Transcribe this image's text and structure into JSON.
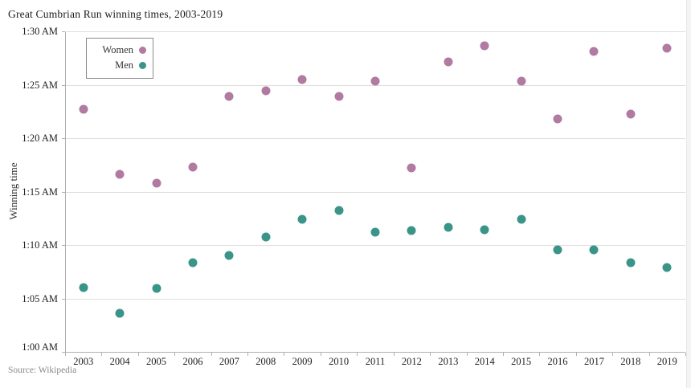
{
  "chart_data": {
    "type": "scatter",
    "title": "Great Cumbrian Run winning times, 2003-2019",
    "ylabel": "Winning time",
    "xlabel": "",
    "source": "Source: Wikipedia",
    "grid": "horizontal",
    "legend_position": "top-left",
    "x": [
      "2003",
      "2004",
      "2005",
      "2006",
      "2007",
      "2008",
      "2009",
      "2010",
      "2011",
      "2012",
      "2013",
      "2014",
      "2015",
      "2016",
      "2017",
      "2018",
      "2019"
    ],
    "y_axis": {
      "ticks_bottom_to_top": [
        "1:00 AM",
        "1:05 AM",
        "1:10 AM",
        "1:15 AM",
        "1:20 AM",
        "1:25 AM",
        "1:30 AM"
      ],
      "min_minutes_after_1am": 0,
      "max_minutes_after_1am": 30,
      "unit": "winning time shown as clock time after 1:00"
    },
    "series": [
      {
        "name": "Women",
        "color": "#b07aa1",
        "values_minutes_after_1am": [
          22.8,
          16.7,
          15.9,
          17.4,
          24.0,
          24.5,
          25.6,
          24.0,
          25.4,
          17.3,
          27.2,
          28.7,
          25.4,
          21.9,
          28.2,
          22.3,
          28.5
        ],
        "values_hms": [
          "1:22:48",
          "1:16:42",
          "1:15:54",
          "1:17:24",
          "1:24:00",
          "1:24:30",
          "1:25:36",
          "1:24:00",
          "1:25:24",
          "1:17:18",
          "1:27:12",
          "1:28:42",
          "1:25:24",
          "1:21:54",
          "1:28:12",
          "1:22:18",
          "1:28:30"
        ]
      },
      {
        "name": "Men",
        "color": "#3a9488",
        "values_minutes_after_1am": [
          6.1,
          3.7,
          6.0,
          8.4,
          9.1,
          10.8,
          12.5,
          13.3,
          11.3,
          11.4,
          11.7,
          11.5,
          12.5,
          9.6,
          9.6,
          8.4,
          8.0
        ],
        "values_hms": [
          "1:06:06",
          "1:03:42",
          "1:06:00",
          "1:08:24",
          "1:09:06",
          "1:10:48",
          "1:12:30",
          "1:13:18",
          "1:11:18",
          "1:11:24",
          "1:11:42",
          "1:11:30",
          "1:12:30",
          "1:09:36",
          "1:09:36",
          "1:08:24",
          "1:08:00"
        ]
      }
    ]
  }
}
